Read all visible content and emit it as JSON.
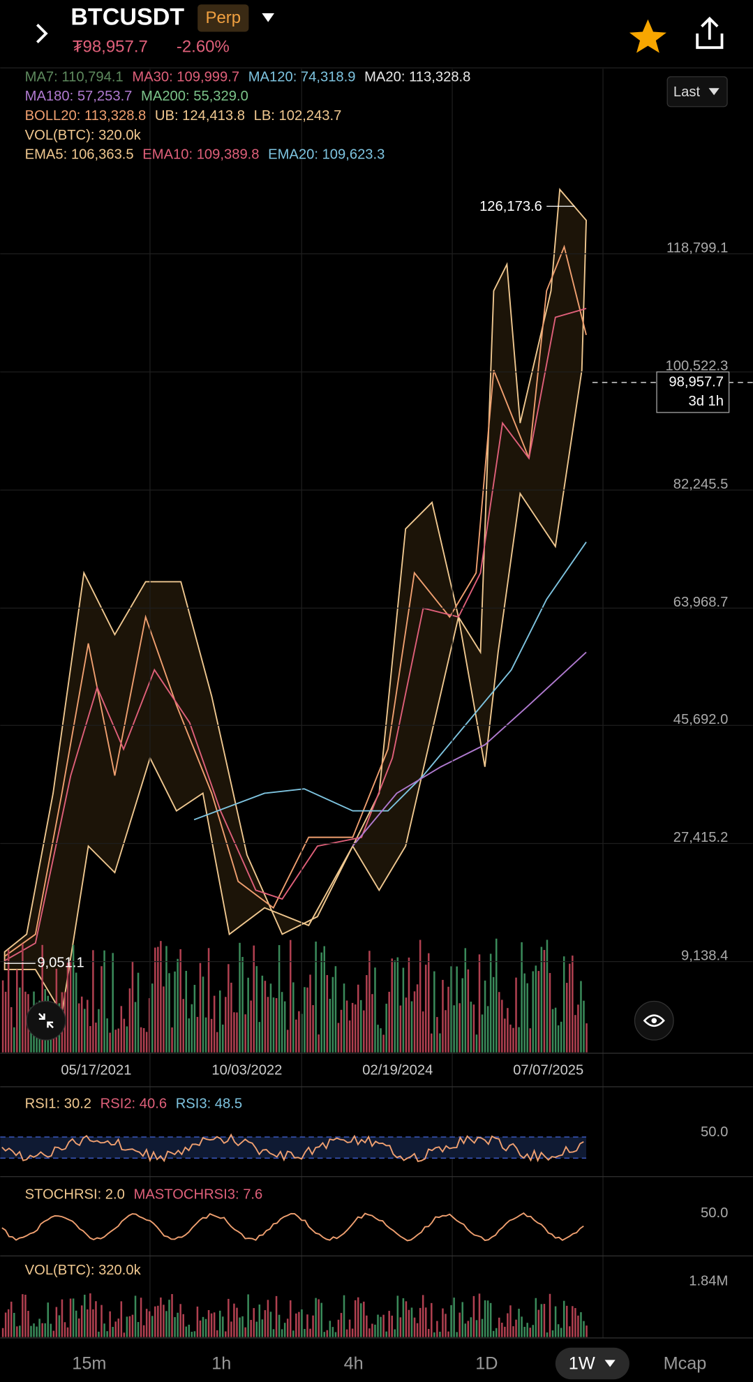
{
  "header": {
    "symbol": "BTCUSDT",
    "badge": "Perp",
    "price": "₮98,957.7",
    "change": "-2.60%"
  },
  "indicators": [
    [
      {
        "text": "MA7: 110,794.1",
        "color": "#5e8a5e"
      },
      {
        "text": "MA30: 109,999.7",
        "color": "#e0607a"
      },
      {
        "text": "MA120: 74,318.9",
        "color": "#7ec4e0"
      },
      {
        "text": "MA20: 113,328.8",
        "color": "#e8e8e8"
      }
    ],
    [
      {
        "text": "MA180: 57,253.7",
        "color": "#b07ad0"
      },
      {
        "text": "MA200: 55,329.0",
        "color": "#7cc48a"
      }
    ],
    [
      {
        "text": "BOLL20: 113,328.8",
        "color": "#f0a070"
      },
      {
        "text": "UB: 124,413.8",
        "color": "#f0c890"
      },
      {
        "text": "LB: 102,243.7",
        "color": "#f0c890"
      }
    ],
    [
      {
        "text": "VOL(BTC): 320.0k",
        "color": "#f0c890"
      }
    ],
    [
      {
        "text": "EMA5: 106,363.5",
        "color": "#f0c890"
      },
      {
        "text": "EMA10: 109,389.8",
        "color": "#e0607a"
      },
      {
        "text": "EMA20: 109,623.3",
        "color": "#7ec4e0"
      }
    ]
  ],
  "price_type": "Last",
  "price_axis": [
    "118,799.1",
    "100,522.3",
    "82,245.5",
    "63,968.7",
    "45,692.0",
    "27,415.2",
    "9,138.4"
  ],
  "high_label": "126,173.6",
  "low_label": "9,051.1",
  "current_tag": {
    "price": "98,957.7",
    "countdown": "3d 1h"
  },
  "dates": [
    "05/17/2021",
    "10/03/2022",
    "02/19/2024",
    "07/07/2025"
  ],
  "rsi": {
    "labels": [
      {
        "text": "RSI1: 30.2",
        "color": "#f0c890"
      },
      {
        "text": "RSI2: 40.6",
        "color": "#e0607a"
      },
      {
        "text": "RSI3: 48.5",
        "color": "#7ec4e0"
      }
    ],
    "axis": "50.0"
  },
  "stoch": {
    "labels": [
      {
        "text": "STOCHRSI: 2.0",
        "color": "#f0c890"
      },
      {
        "text": "MASTOCHRSI3: 7.6",
        "color": "#e0607a"
      }
    ],
    "axis": "50.0"
  },
  "volume": {
    "label": "VOL(BTC): 320.0k",
    "axis": "1.84M"
  },
  "tabs": [
    "15m",
    "1h",
    "4h",
    "1D",
    "1W",
    "Mcap"
  ],
  "active_tab": 4
}
